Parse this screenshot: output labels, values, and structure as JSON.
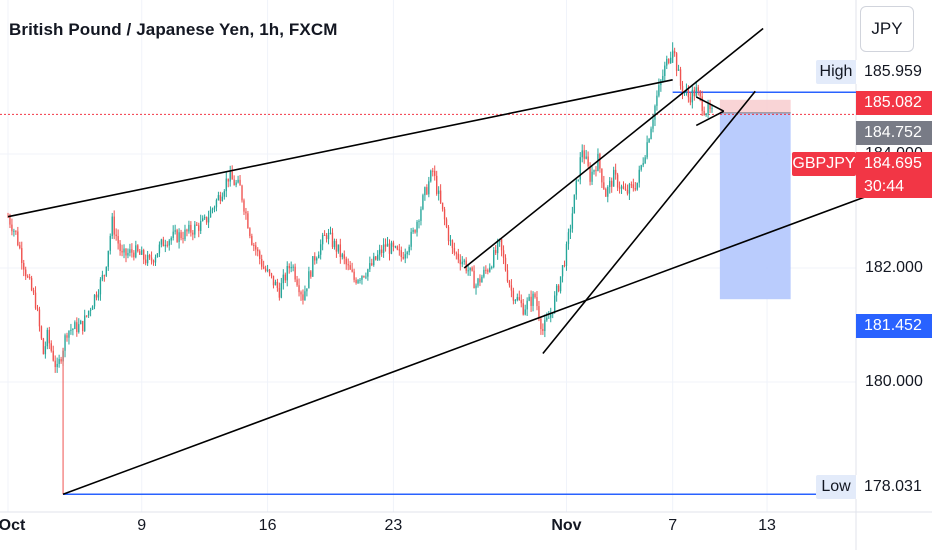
{
  "header": {
    "title": "British Pound / Japanese Yen, 1h, FXCM",
    "currency": "JPY"
  },
  "colors": {
    "up": "#26a69a",
    "down": "#ef5350",
    "blue": "#2962ff",
    "grid": "#f0f3fa",
    "red_dot": "#f23645",
    "stop_zone": "#f7c9cc",
    "target_zone": "#b3c6fd"
  },
  "chart_data": {
    "type": "candlestick",
    "symbol": "GBPJPY",
    "ylim": [
      177.72,
      186.7
    ],
    "x_ticks": [
      {
        "label": "Oct",
        "bold": true
      },
      {
        "label": "9",
        "bold": false
      },
      {
        "label": "16",
        "bold": false
      },
      {
        "label": "23",
        "bold": false
      },
      {
        "label": "Nov",
        "bold": true
      },
      {
        "label": "7",
        "bold": false
      },
      {
        "label": "13",
        "bold": false
      }
    ],
    "y_ticks": [
      "180.000",
      "182.000",
      "184.000"
    ],
    "price_labels": {
      "high": {
        "label": "High",
        "value": "185.959"
      },
      "low": {
        "label": "Low",
        "value": "178.031"
      },
      "level_upper": "185.082",
      "level_mid": "184.752",
      "symbol_tag": "GBPJPY",
      "last_price": "184.695",
      "countdown": "30:44",
      "target": "181.452"
    },
    "key_points": [
      {
        "t": 0,
        "p": 182.9
      },
      {
        "t": 4,
        "p": 182.6
      },
      {
        "t": 10,
        "p": 181.8
      },
      {
        "t": 14,
        "p": 181.4
      },
      {
        "t": 18,
        "p": 180.5
      },
      {
        "t": 20,
        "p": 180.8
      },
      {
        "t": 25,
        "p": 180.2
      },
      {
        "t": 30,
        "p": 180.9
      },
      {
        "t": 38,
        "p": 181.0
      },
      {
        "t": 44,
        "p": 181.5
      },
      {
        "t": 49,
        "p": 181.9
      },
      {
        "t": 53,
        "p": 182.8
      },
      {
        "t": 58,
        "p": 182.2
      },
      {
        "t": 64,
        "p": 182.3
      },
      {
        "t": 72,
        "p": 182.1
      },
      {
        "t": 80,
        "p": 182.5
      },
      {
        "t": 90,
        "p": 182.6
      },
      {
        "t": 100,
        "p": 182.8
      },
      {
        "t": 108,
        "p": 183.3
      },
      {
        "t": 112,
        "p": 183.6
      },
      {
        "t": 118,
        "p": 183.4
      },
      {
        "t": 124,
        "p": 182.5
      },
      {
        "t": 130,
        "p": 182.0
      },
      {
        "t": 138,
        "p": 181.6
      },
      {
        "t": 144,
        "p": 182.1
      },
      {
        "t": 150,
        "p": 181.5
      },
      {
        "t": 156,
        "p": 182.2
      },
      {
        "t": 162,
        "p": 182.6
      },
      {
        "t": 168,
        "p": 182.3
      },
      {
        "t": 176,
        "p": 181.8
      },
      {
        "t": 184,
        "p": 182.0
      },
      {
        "t": 192,
        "p": 182.4
      },
      {
        "t": 200,
        "p": 182.2
      },
      {
        "t": 206,
        "p": 182.6
      },
      {
        "t": 212,
        "p": 183.3
      },
      {
        "t": 216,
        "p": 183.7
      },
      {
        "t": 220,
        "p": 183.1
      },
      {
        "t": 226,
        "p": 182.3
      },
      {
        "t": 232,
        "p": 182.1
      },
      {
        "t": 238,
        "p": 181.7
      },
      {
        "t": 244,
        "p": 182.0
      },
      {
        "t": 250,
        "p": 182.4
      },
      {
        "t": 256,
        "p": 181.6
      },
      {
        "t": 262,
        "p": 181.3
      },
      {
        "t": 268,
        "p": 181.5
      },
      {
        "t": 272,
        "p": 180.9
      },
      {
        "t": 276,
        "p": 181.2
      },
      {
        "t": 280,
        "p": 181.7
      },
      {
        "t": 284,
        "p": 182.3
      },
      {
        "t": 288,
        "p": 183.2
      },
      {
        "t": 292,
        "p": 184.1
      },
      {
        "t": 296,
        "p": 183.6
      },
      {
        "t": 300,
        "p": 183.9
      },
      {
        "t": 304,
        "p": 183.3
      },
      {
        "t": 308,
        "p": 183.6
      },
      {
        "t": 314,
        "p": 183.3
      },
      {
        "t": 320,
        "p": 183.5
      },
      {
        "t": 325,
        "p": 184.2
      },
      {
        "t": 330,
        "p": 185.0
      },
      {
        "t": 334,
        "p": 185.5
      },
      {
        "t": 338,
        "p": 185.9
      },
      {
        "t": 342,
        "p": 185.2
      },
      {
        "t": 346,
        "p": 185.0
      },
      {
        "t": 350,
        "p": 185.1
      },
      {
        "t": 354,
        "p": 184.8
      },
      {
        "t": 358,
        "p": 184.7
      }
    ]
  }
}
